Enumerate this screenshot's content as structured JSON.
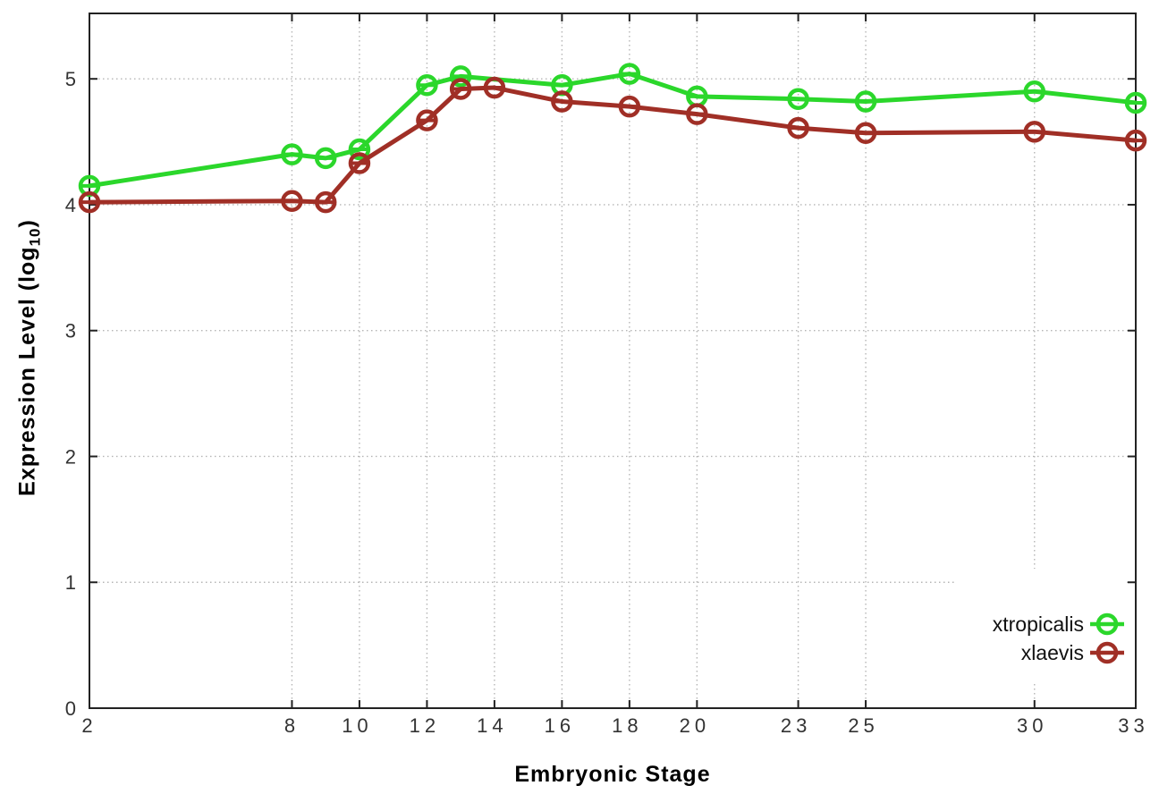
{
  "chart_data": {
    "type": "line",
    "title": "",
    "xlabel": "Embryonic Stage",
    "ylabel": "Expression Level (log10)",
    "ylabel_parts": {
      "main": "Expression Level (log",
      "sub": "10",
      "end": ")"
    },
    "x_axis": {
      "ticks": [
        2,
        8,
        10,
        12,
        14,
        16,
        18,
        20,
        23,
        25,
        30,
        33
      ],
      "range": [
        2,
        33
      ]
    },
    "y_axis": {
      "ticks": [
        0,
        1,
        2,
        3,
        4,
        5
      ],
      "range": [
        0,
        5.52
      ]
    },
    "grid": "dotted",
    "legend_position": "inside-bottom-right",
    "marker_style": "open-circle-with-errorbar-cap",
    "series": [
      {
        "name": "xtropicalis",
        "color": "#2bd72b",
        "x": [
          2,
          8,
          9,
          10,
          12,
          13,
          16,
          18,
          20,
          23,
          25,
          30,
          33
        ],
        "y": [
          4.15,
          4.4,
          4.37,
          4.44,
          4.95,
          5.02,
          4.95,
          5.04,
          4.86,
          4.84,
          4.82,
          4.9,
          4.81
        ]
      },
      {
        "name": "xlaevis",
        "color": "#a02f26",
        "x": [
          2,
          8,
          9,
          10,
          12,
          13,
          14,
          16,
          18,
          20,
          23,
          25,
          30,
          33
        ],
        "y": [
          4.02,
          4.03,
          4.02,
          4.33,
          4.67,
          4.92,
          4.93,
          4.82,
          4.78,
          4.72,
          4.61,
          4.57,
          4.58,
          4.51
        ]
      }
    ],
    "style_colors": {
      "axis": "#222222",
      "grid": "#b5b5b5",
      "tick_label": "#333333",
      "background": "#ffffff"
    }
  }
}
